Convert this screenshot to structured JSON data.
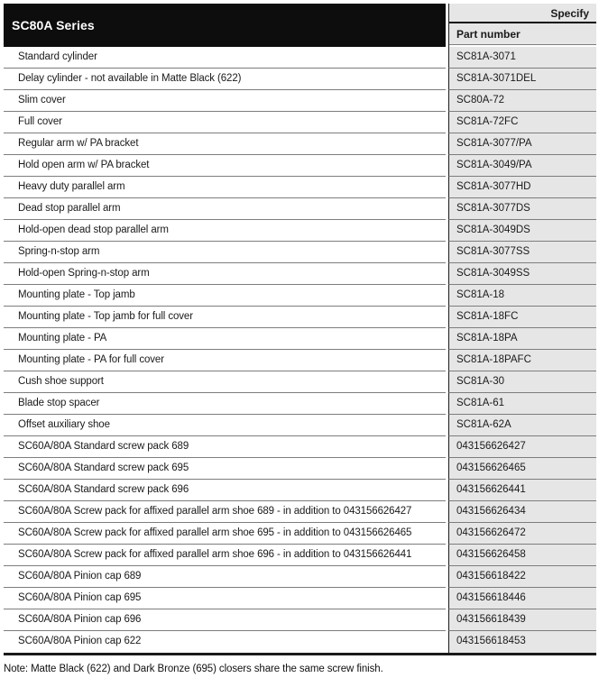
{
  "header": {
    "series_title": "SC80A Series",
    "specify_label": "Specify",
    "part_number_label": "Part number"
  },
  "rows": [
    {
      "description": "Standard cylinder",
      "part_number": "SC81A-3071"
    },
    {
      "description": "Delay cylinder - not available in Matte Black (622)",
      "part_number": "SC81A-3071DEL"
    },
    {
      "description": "Slim cover",
      "part_number": "SC80A-72"
    },
    {
      "description": "Full cover",
      "part_number": "SC81A-72FC"
    },
    {
      "description": "Regular arm w/ PA bracket",
      "part_number": "SC81A-3077/PA"
    },
    {
      "description": "Hold open arm w/ PA bracket",
      "part_number": "SC81A-3049/PA"
    },
    {
      "description": "Heavy duty parallel arm",
      "part_number": "SC81A-3077HD"
    },
    {
      "description": "Dead stop parallel arm",
      "part_number": "SC81A-3077DS"
    },
    {
      "description": "Hold-open dead stop parallel arm",
      "part_number": "SC81A-3049DS"
    },
    {
      "description": "Spring-n-stop arm",
      "part_number": "SC81A-3077SS"
    },
    {
      "description": "Hold-open Spring-n-stop arm",
      "part_number": "SC81A-3049SS"
    },
    {
      "description": "Mounting plate - Top jamb",
      "part_number": "SC81A-18"
    },
    {
      "description": "Mounting plate - Top jamb for full cover",
      "part_number": "SC81A-18FC"
    },
    {
      "description": "Mounting plate - PA",
      "part_number": "SC81A-18PA"
    },
    {
      "description": "Mounting plate - PA for full cover",
      "part_number": "SC81A-18PAFC"
    },
    {
      "description": "Cush shoe support",
      "part_number": "SC81A-30"
    },
    {
      "description": "Blade stop spacer",
      "part_number": "SC81A-61"
    },
    {
      "description": "Offset auxiliary shoe",
      "part_number": "SC81A-62A"
    },
    {
      "description": "SC60A/80A Standard screw pack 689",
      "part_number": "043156626427"
    },
    {
      "description": "SC60A/80A Standard screw pack 695",
      "part_number": "043156626465"
    },
    {
      "description": "SC60A/80A Standard screw pack 696",
      "part_number": "043156626441"
    },
    {
      "description": "SC60A/80A Screw pack for affixed parallel arm shoe 689 - in addition to 043156626427",
      "part_number": "043156626434"
    },
    {
      "description": "SC60A/80A Screw pack for affixed parallel arm shoe 695 - in addition to 043156626465",
      "part_number": "043156626472"
    },
    {
      "description": "SC60A/80A Screw pack for affixed parallel arm shoe 696 - in addition to 043156626441",
      "part_number": "043156626458"
    },
    {
      "description": "SC60A/80A Pinion cap 689",
      "part_number": "043156618422"
    },
    {
      "description": "SC60A/80A Pinion cap 695",
      "part_number": "043156618446"
    },
    {
      "description": "SC60A/80A Pinion cap 696",
      "part_number": "043156618439"
    },
    {
      "description": "SC60A/80A Pinion cap 622",
      "part_number": "043156618453"
    }
  ],
  "note": "Note: Matte Black (622) and Dark Bronze (695) closers share the same screw finish.",
  "colors": {
    "header_black": "#0d0d0d",
    "column_gray": "#e6e6e6",
    "separator_gray": "#7d7d7d",
    "border_dark": "#1a1a1a"
  }
}
